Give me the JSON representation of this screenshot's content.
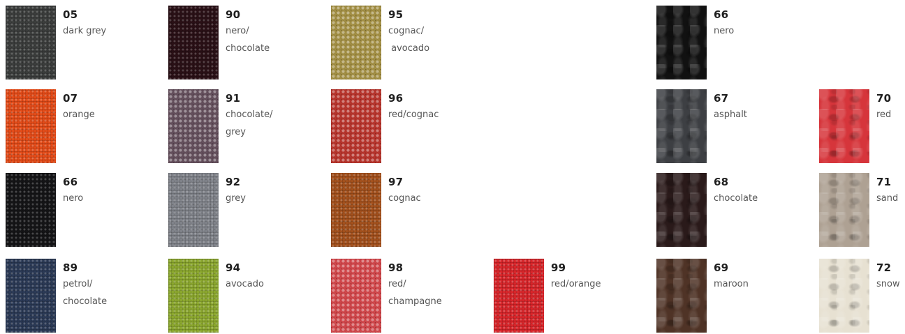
{
  "swatches": [
    {
      "code": "05",
      "name": "dark grey",
      "color": "#3b3d3c",
      "texture": "weave"
    },
    {
      "code": "90",
      "name": "nero/\nchocolate",
      "color": "#2a1016",
      "texture": "weave"
    },
    {
      "code": "95",
      "name": "cognac/\n avocado",
      "color": "#a49044",
      "texture": "coarse"
    },
    {
      "code": "66",
      "name": "nero",
      "color": "#111111",
      "texture": "leather"
    },
    {
      "code": "07",
      "name": "orange",
      "color": "#e44b18",
      "texture": "weave"
    },
    {
      "code": "91",
      "name": "chocolate/\ngrey",
      "color": "#65505d",
      "texture": "coarse"
    },
    {
      "code": "96",
      "name": "red/cognac",
      "color": "#b9352d",
      "texture": "coarse"
    },
    {
      "code": "67",
      "name": "asphalt",
      "color": "#3d3f43",
      "texture": "leather"
    },
    {
      "code": "70",
      "name": "red",
      "color": "#d6353b",
      "texture": "leather"
    },
    {
      "code": "66",
      "name": "nero",
      "color": "#151517",
      "texture": "weave"
    },
    {
      "code": "92",
      "name": "grey",
      "color": "#7f8289",
      "texture": "weave"
    },
    {
      "code": "97",
      "name": "cognac",
      "color": "#a3501c",
      "texture": "weave"
    },
    {
      "code": "68",
      "name": "chocolate",
      "color": "#2a1a1a",
      "texture": "leather"
    },
    {
      "code": "71",
      "name": "sand",
      "color": "#aea193",
      "texture": "leather"
    },
    {
      "code": "89",
      "name": "petrol/\nchocolate",
      "color": "#2b3a56",
      "texture": "weave"
    },
    {
      "code": "94",
      "name": "avocado",
      "color": "#8ba72e",
      "texture": "weave"
    },
    {
      "code": "98",
      "name": "red/\nchampagne",
      "color": "#d2474b",
      "texture": "coarse"
    },
    {
      "code": "99",
      "name": "red/orange",
      "color": "#d8252a",
      "texture": "weave"
    },
    {
      "code": "69",
      "name": "maroon",
      "color": "#4f3326",
      "texture": "leather"
    },
    {
      "code": "72",
      "name": "snow",
      "color": "#e7e1d2",
      "texture": "leather"
    }
  ]
}
